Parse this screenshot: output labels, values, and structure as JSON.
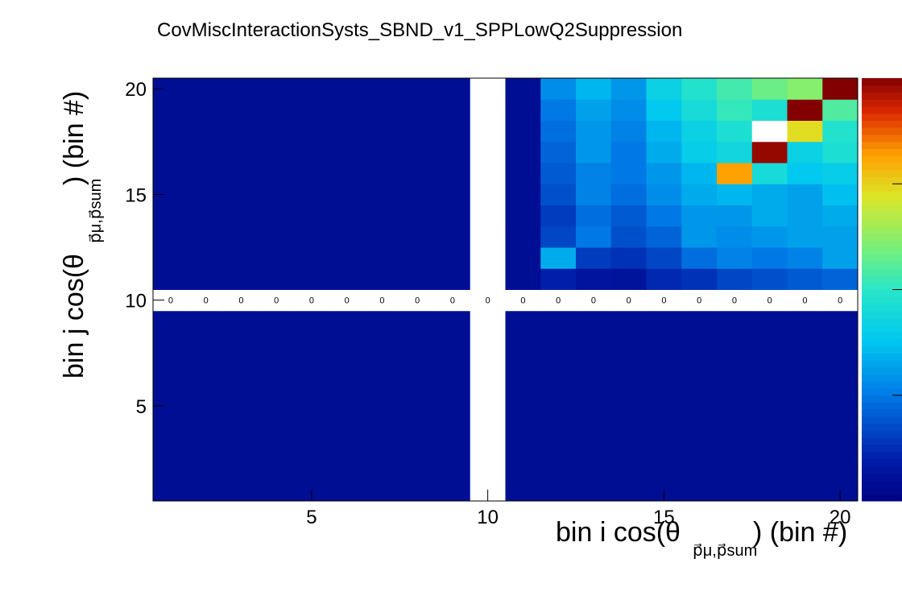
{
  "chart_data": {
    "type": "heatmap",
    "title": "CovMiscInteractionSysts_SBND_v1_SPPLowQ2Suppression",
    "xlabel": "bin i cos(θ",
    "ylabel": "bin j cos(θ",
    "label_subscript": "p⃗μ,p⃗sum",
    "label_unit": ") (bin #)",
    "xlim": [
      0.5,
      20.5
    ],
    "ylim": [
      0.5,
      20.5
    ],
    "x_ticks": [
      5,
      10,
      15,
      20
    ],
    "y_ticks": [
      5,
      10,
      15,
      20
    ],
    "x_tick_labels": [
      "5",
      "10",
      "15",
      "20"
    ],
    "y_tick_labels": [
      "5",
      "10",
      "15",
      "20"
    ],
    "z_range": [
      -0.06,
      0.06
    ],
    "colormap": "rainbow",
    "cell_text_note": "per-cell text values are overlapping and illegible; row 10 and column 10 are 0",
    "zero_row": 10,
    "zero_col": 10,
    "zero_label": "0",
    "values": [
      [
        -0.0545,
        -0.0545,
        -0.0545,
        -0.0545,
        -0.0545,
        -0.0545,
        -0.0545,
        -0.0545,
        -0.0545,
        0.0,
        -0.0545,
        -0.0545,
        -0.0545,
        -0.0545,
        -0.0545,
        -0.0545,
        -0.0545,
        -0.0545,
        -0.0545,
        -0.0545
      ],
      [
        -0.0545,
        -0.0545,
        -0.0545,
        -0.0545,
        -0.0545,
        -0.0545,
        -0.0545,
        -0.0545,
        -0.0545,
        0.0,
        -0.0545,
        -0.0545,
        -0.0545,
        -0.0545,
        -0.0545,
        -0.0545,
        -0.0545,
        -0.0545,
        -0.0545,
        -0.0545
      ],
      [
        -0.0545,
        -0.0545,
        -0.0545,
        -0.0545,
        -0.0545,
        -0.0545,
        -0.0545,
        -0.0545,
        -0.0545,
        0.0,
        -0.0545,
        -0.0545,
        -0.0545,
        -0.0545,
        -0.0545,
        -0.0545,
        -0.0545,
        -0.0545,
        -0.0545,
        -0.0545
      ],
      [
        -0.0545,
        -0.0545,
        -0.0545,
        -0.0545,
        -0.0545,
        -0.0545,
        -0.0545,
        -0.0545,
        -0.0545,
        0.0,
        -0.0545,
        -0.0545,
        -0.0545,
        -0.0545,
        -0.0545,
        -0.0545,
        -0.0545,
        -0.0545,
        -0.0545,
        -0.0545
      ],
      [
        -0.0545,
        -0.0545,
        -0.0545,
        -0.0545,
        -0.0545,
        -0.0545,
        -0.0545,
        -0.0545,
        -0.0545,
        0.0,
        -0.0545,
        -0.0545,
        -0.0545,
        -0.0545,
        -0.0545,
        -0.0545,
        -0.0545,
        -0.0545,
        -0.0545,
        -0.0545
      ],
      [
        -0.0545,
        -0.0545,
        -0.0545,
        -0.0545,
        -0.0545,
        -0.0545,
        -0.0545,
        -0.0545,
        -0.0545,
        0.0,
        -0.0545,
        -0.0545,
        -0.0545,
        -0.0545,
        -0.0545,
        -0.0545,
        -0.0545,
        -0.0545,
        -0.0545,
        -0.0545
      ],
      [
        -0.0545,
        -0.0545,
        -0.0545,
        -0.0545,
        -0.0545,
        -0.0545,
        -0.0545,
        -0.0545,
        -0.0545,
        0.0,
        -0.0545,
        -0.0545,
        -0.0545,
        -0.0545,
        -0.0545,
        -0.0545,
        -0.0545,
        -0.0545,
        -0.0545,
        -0.0545
      ],
      [
        -0.0545,
        -0.0545,
        -0.0545,
        -0.0545,
        -0.0545,
        -0.0545,
        -0.0545,
        -0.0545,
        -0.0545,
        0.0,
        -0.0545,
        -0.0545,
        -0.0545,
        -0.0545,
        -0.0545,
        -0.0545,
        -0.0545,
        -0.0545,
        -0.0545,
        -0.0545
      ],
      [
        -0.0545,
        -0.0545,
        -0.0545,
        -0.0545,
        -0.0545,
        -0.0545,
        -0.0545,
        -0.0545,
        -0.0545,
        0.0,
        -0.0545,
        -0.0545,
        -0.0545,
        -0.0545,
        -0.0545,
        -0.0545,
        -0.0545,
        -0.0545,
        -0.0545,
        -0.0545
      ],
      [
        0.0,
        0.0,
        0.0,
        0.0,
        0.0,
        0.0,
        0.0,
        0.0,
        0.0,
        0.0,
        0.0,
        0.0,
        0.0,
        0.0,
        0.0,
        0.0,
        0.0,
        0.0,
        0.0,
        0.0
      ],
      [
        -0.0545,
        -0.0545,
        -0.0545,
        -0.0545,
        -0.0545,
        -0.0545,
        -0.0545,
        -0.0545,
        -0.0545,
        0.0,
        -0.0545,
        -0.048,
        -0.052,
        -0.0525,
        -0.046,
        -0.044,
        -0.04,
        -0.038,
        -0.036,
        -0.034
      ],
      [
        -0.0545,
        -0.0545,
        -0.0545,
        -0.0545,
        -0.0545,
        -0.0545,
        -0.0545,
        -0.0545,
        -0.0545,
        0.0,
        -0.0545,
        -0.02,
        -0.042,
        -0.044,
        -0.04,
        -0.032,
        -0.028,
        -0.03,
        -0.028,
        -0.022
      ],
      [
        -0.0545,
        -0.0545,
        -0.0545,
        -0.0545,
        -0.0545,
        -0.0545,
        -0.0545,
        -0.0545,
        -0.0545,
        0.0,
        -0.0545,
        -0.04,
        -0.03,
        -0.038,
        -0.034,
        -0.024,
        -0.026,
        -0.024,
        -0.022,
        -0.022
      ],
      [
        -0.0545,
        -0.0545,
        -0.0545,
        -0.0545,
        -0.0545,
        -0.0545,
        -0.0545,
        -0.0545,
        -0.0545,
        0.0,
        -0.0545,
        -0.042,
        -0.032,
        -0.036,
        -0.03,
        -0.024,
        -0.024,
        -0.02,
        -0.022,
        -0.02
      ],
      [
        -0.0545,
        -0.0545,
        -0.0545,
        -0.0545,
        -0.0545,
        -0.0545,
        -0.0545,
        -0.0545,
        -0.0545,
        0.0,
        -0.0545,
        -0.038,
        -0.028,
        -0.032,
        -0.026,
        -0.02,
        -0.018,
        -0.02,
        -0.022,
        -0.016
      ],
      [
        -0.0545,
        -0.0545,
        -0.0545,
        -0.0545,
        -0.0545,
        -0.0545,
        -0.0545,
        -0.0545,
        -0.0545,
        0.0,
        -0.0545,
        -0.036,
        -0.028,
        -0.03,
        -0.024,
        -0.018,
        0.038,
        -0.006,
        -0.014,
        -0.012
      ],
      [
        -0.0545,
        -0.0545,
        -0.0545,
        -0.0545,
        -0.0545,
        -0.0545,
        -0.0545,
        -0.0545,
        -0.0545,
        0.0,
        -0.0545,
        -0.034,
        -0.024,
        -0.03,
        -0.02,
        -0.012,
        -0.008,
        0.058,
        -0.01,
        -0.004
      ],
      [
        -0.0545,
        -0.0545,
        -0.0545,
        -0.0545,
        -0.0545,
        -0.0545,
        -0.0545,
        -0.0545,
        -0.0545,
        0.0,
        -0.0545,
        -0.032,
        -0.024,
        -0.028,
        -0.018,
        -0.01,
        -0.004,
        0.0,
        0.028,
        -0.002
      ],
      [
        -0.0545,
        -0.0545,
        -0.0545,
        -0.0545,
        -0.0545,
        -0.0545,
        -0.0545,
        -0.0545,
        -0.0545,
        0.0,
        -0.0545,
        -0.03,
        -0.022,
        -0.026,
        -0.014,
        -0.006,
        0.002,
        -0.004,
        0.06,
        0.006
      ],
      [
        -0.0545,
        -0.0545,
        -0.0545,
        -0.0545,
        -0.0545,
        -0.0545,
        -0.0545,
        -0.0545,
        -0.0545,
        0.0,
        -0.0545,
        -0.026,
        -0.018,
        -0.024,
        -0.01,
        -0.002,
        0.004,
        0.01,
        0.014,
        0.06
      ]
    ]
  }
}
